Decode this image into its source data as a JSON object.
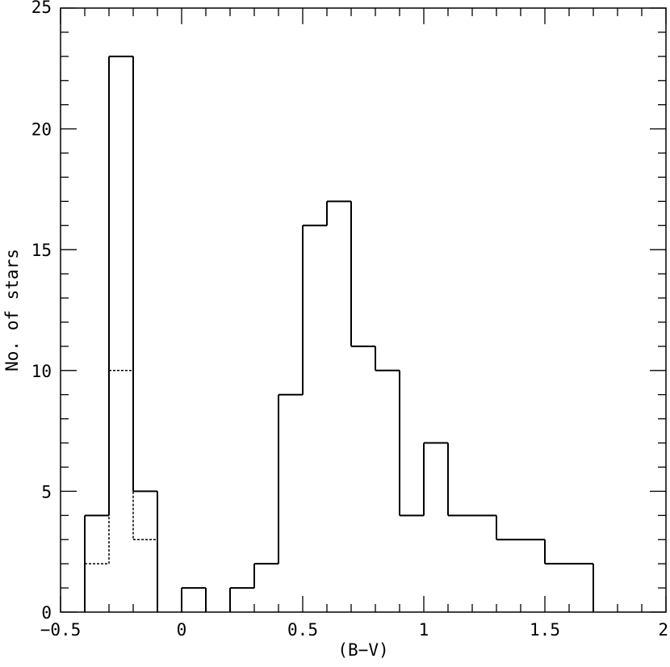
{
  "chart_data": {
    "type": "histogram",
    "xlabel": "(B−V)",
    "ylabel": "No. of stars",
    "xlim": [
      -0.5,
      2
    ],
    "ylim": [
      0,
      25
    ],
    "x_ticks": [
      -0.5,
      0,
      0.5,
      1,
      1.5,
      2
    ],
    "x_tick_labels": [
      "−0.5",
      "0",
      "0.5",
      "1",
      "1.5",
      "2"
    ],
    "y_ticks": [
      0,
      5,
      10,
      15,
      20,
      25
    ],
    "y_tick_labels": [
      "0",
      "5",
      "10",
      "15",
      "20",
      "25"
    ],
    "x_minor_step": 0.1,
    "y_minor_step": 1,
    "bin_width": 0.1,
    "grid": false,
    "series": [
      {
        "style": "solid",
        "bin_starts": [
          -0.4,
          -0.3,
          -0.2,
          -0.1,
          0.0,
          0.1,
          0.2,
          0.3,
          0.4,
          0.5,
          0.6,
          0.7,
          0.8,
          0.9,
          1.0,
          1.1,
          1.2,
          1.3,
          1.4,
          1.5,
          1.6
        ],
        "values": [
          4,
          23,
          5,
          0,
          1,
          0,
          1,
          2,
          9,
          16,
          17,
          11,
          10,
          4,
          7,
          4,
          4,
          3,
          3,
          2,
          2
        ]
      },
      {
        "style": "dotted",
        "bin_starts": [
          -0.4,
          -0.3,
          -0.2,
          -0.1,
          0.0,
          0.1,
          0.2,
          0.3,
          0.4,
          0.5,
          0.6,
          0.7,
          0.8,
          0.9,
          1.0,
          1.1,
          1.2,
          1.3,
          1.4,
          1.5,
          1.6
        ],
        "values": [
          2,
          10,
          3,
          0,
          1,
          0,
          1,
          2,
          9,
          16,
          17,
          11,
          10,
          4,
          7,
          4,
          4,
          3,
          3,
          2,
          2
        ]
      }
    ]
  }
}
